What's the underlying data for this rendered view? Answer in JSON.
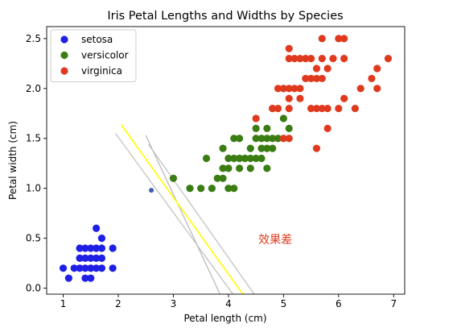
{
  "chart_data": {
    "type": "scatter",
    "title": "Iris Petal Lengths and Widths by Species",
    "xlabel": "Petal length (cm)",
    "ylabel": "Petal width (cm)",
    "xlim": [
      0.7,
      7.2
    ],
    "ylim": [
      -0.06,
      2.62
    ],
    "xticks": [
      1,
      2,
      3,
      4,
      5,
      6,
      7
    ],
    "xtick_labels": [
      "1",
      "2",
      "3",
      "4",
      "5",
      "6",
      "7"
    ],
    "yticks": [
      0.0,
      0.5,
      1.0,
      1.5,
      2.0,
      2.5
    ],
    "ytick_labels": [
      "0.0",
      "0.5",
      "1.0",
      "1.5",
      "2.0",
      "2.5"
    ],
    "grid": false,
    "legend_position": "top-left",
    "series": [
      {
        "name": "setosa",
        "color": "#1f1fe6",
        "points": [
          [
            1.0,
            0.2
          ],
          [
            1.1,
            0.1
          ],
          [
            1.2,
            0.2
          ],
          [
            1.3,
            0.2
          ],
          [
            1.3,
            0.3
          ],
          [
            1.3,
            0.4
          ],
          [
            1.4,
            0.1
          ],
          [
            1.4,
            0.2
          ],
          [
            1.4,
            0.3
          ],
          [
            1.5,
            0.1
          ],
          [
            1.5,
            0.2
          ],
          [
            1.5,
            0.3
          ],
          [
            1.5,
            0.4
          ],
          [
            1.6,
            0.2
          ],
          [
            1.6,
            0.4
          ],
          [
            1.6,
            0.6
          ],
          [
            1.7,
            0.2
          ],
          [
            1.7,
            0.3
          ],
          [
            1.7,
            0.4
          ],
          [
            1.7,
            0.5
          ],
          [
            1.9,
            0.2
          ],
          [
            1.9,
            0.4
          ],
          [
            1.4,
            0.4
          ],
          [
            1.6,
            0.3
          ],
          [
            1.5,
            0.2
          ]
        ]
      },
      {
        "name": "versicolor",
        "color": "#3a7d13",
        "points": [
          [
            3.0,
            1.1
          ],
          [
            3.3,
            1.0
          ],
          [
            3.5,
            1.0
          ],
          [
            3.6,
            1.3
          ],
          [
            3.7,
            1.0
          ],
          [
            3.8,
            1.1
          ],
          [
            3.9,
            1.1
          ],
          [
            3.9,
            1.2
          ],
          [
            3.9,
            1.4
          ],
          [
            4.0,
            1.0
          ],
          [
            4.0,
            1.2
          ],
          [
            4.0,
            1.3
          ],
          [
            4.1,
            1.0
          ],
          [
            4.1,
            1.3
          ],
          [
            4.2,
            1.2
          ],
          [
            4.2,
            1.3
          ],
          [
            4.2,
            1.5
          ],
          [
            4.3,
            1.3
          ],
          [
            4.4,
            1.2
          ],
          [
            4.4,
            1.3
          ],
          [
            4.4,
            1.4
          ],
          [
            4.5,
            1.3
          ],
          [
            4.5,
            1.5
          ],
          [
            4.6,
            1.3
          ],
          [
            4.6,
            1.4
          ],
          [
            4.6,
            1.5
          ],
          [
            4.7,
            1.2
          ],
          [
            4.7,
            1.4
          ],
          [
            4.7,
            1.5
          ],
          [
            4.7,
            1.6
          ],
          [
            4.8,
            1.4
          ],
          [
            4.8,
            1.8
          ],
          [
            4.9,
            1.5
          ],
          [
            5.0,
            1.7
          ],
          [
            5.1,
            1.6
          ],
          [
            4.8,
            1.5
          ],
          [
            4.5,
            1.6
          ],
          [
            4.1,
            1.5
          ]
        ]
      },
      {
        "name": "virginica",
        "color": "#e03a1e",
        "points": [
          [
            4.5,
            1.7
          ],
          [
            4.8,
            1.8
          ],
          [
            4.9,
            1.8
          ],
          [
            4.9,
            2.0
          ],
          [
            5.0,
            1.5
          ],
          [
            5.0,
            2.0
          ],
          [
            5.1,
            1.5
          ],
          [
            5.1,
            1.8
          ],
          [
            5.1,
            1.9
          ],
          [
            5.1,
            2.0
          ],
          [
            5.1,
            2.3
          ],
          [
            5.1,
            2.4
          ],
          [
            5.2,
            2.0
          ],
          [
            5.2,
            2.3
          ],
          [
            5.3,
            1.9
          ],
          [
            5.3,
            2.3
          ],
          [
            5.4,
            2.1
          ],
          [
            5.4,
            2.3
          ],
          [
            5.5,
            1.8
          ],
          [
            5.5,
            2.1
          ],
          [
            5.5,
            2.3
          ],
          [
            5.6,
            1.4
          ],
          [
            5.6,
            1.8
          ],
          [
            5.6,
            2.1
          ],
          [
            5.6,
            2.2
          ],
          [
            5.7,
            1.8
          ],
          [
            5.7,
            2.1
          ],
          [
            5.7,
            2.3
          ],
          [
            5.7,
            2.5
          ],
          [
            5.8,
            1.6
          ],
          [
            5.8,
            1.8
          ],
          [
            5.8,
            2.2
          ],
          [
            5.9,
            2.3
          ],
          [
            6.0,
            1.8
          ],
          [
            6.0,
            2.5
          ],
          [
            6.1,
            1.9
          ],
          [
            6.1,
            2.3
          ],
          [
            6.1,
            2.5
          ],
          [
            6.3,
            1.8
          ],
          [
            6.4,
            2.0
          ],
          [
            6.6,
            2.1
          ],
          [
            6.7,
            2.0
          ],
          [
            6.7,
            2.2
          ],
          [
            6.9,
            2.3
          ],
          [
            5.0,
            2.0
          ],
          [
            5.3,
            2.0
          ]
        ]
      },
      {
        "name": "",
        "color": "#3a5fb0",
        "points": [
          [
            2.6,
            0.98
          ]
        ]
      }
    ],
    "lines": [
      {
        "color": "#bdbdbd",
        "width": 1.2,
        "from": [
          2.5,
          1.53
        ],
        "to": [
          4.05,
          -0.3
        ]
      },
      {
        "color": "#bdbdbd",
        "width": 1.2,
        "from": [
          2.5,
          1.53
        ],
        "to": [
          4.05,
          -0.3
        ]
      },
      {
        "color": "#ffff00",
        "width": 1.6,
        "from": [
          2.05,
          1.64
        ],
        "to": [
          4.6,
          -0.32
        ]
      },
      {
        "color": "#bdbdbd",
        "width": 1.2,
        "from": [
          1.95,
          1.55
        ],
        "to": [
          4.4,
          -0.3
        ]
      },
      {
        "color": "#bdbdbd",
        "width": 1.2,
        "from": [
          2.55,
          1.44
        ],
        "to": [
          4.8,
          -0.32
        ]
      }
    ],
    "annotation": {
      "text": "效果差",
      "x": 4.85,
      "y": 0.45,
      "color": "#e03a1e"
    }
  }
}
